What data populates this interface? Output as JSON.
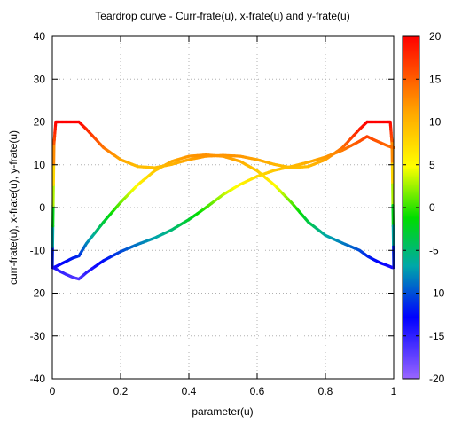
{
  "chart_data": {
    "type": "line",
    "title": "Teardrop curve - Curr-frate(u), x-frate(u) and y-frate(u)",
    "xlabel": "parameter(u)",
    "ylabel": "curr-frate(u), x-frate(u), y-frate(u)",
    "xlim": [
      0,
      1
    ],
    "ylim": [
      -40,
      40
    ],
    "x_ticks": [
      "0",
      "0.2",
      "0.4",
      "0.6",
      "0.8",
      "1"
    ],
    "y_ticks": [
      "-40",
      "-30",
      "-20",
      "-10",
      "0",
      "10",
      "20",
      "30",
      "40"
    ],
    "grid": true,
    "colorbar": {
      "range": [
        -20,
        20
      ],
      "ticks": [
        "-20",
        "-15",
        "-10",
        "-5",
        "0",
        "5",
        "10",
        "15",
        "20"
      ],
      "palette": [
        "#9966ff",
        "#0000ff",
        "#00a8a8",
        "#00dd00",
        "#ffff00",
        "#ffa500",
        "#ff0000"
      ]
    },
    "series": [
      {
        "x": [
          0,
          0.005,
          0.01,
          0.02,
          0.04,
          0.06,
          0.078,
          0.1,
          0.15,
          0.2,
          0.25,
          0.3,
          0.35,
          0.4,
          0.45,
          0.5,
          0.55,
          0.6,
          0.65,
          0.7,
          0.75,
          0.8,
          0.85,
          0.9,
          0.922,
          0.94,
          0.96,
          0.98,
          0.99,
          0.995,
          1
        ],
        "y": [
          -14,
          15,
          20,
          20,
          20,
          20,
          20,
          18.3,
          14,
          11.2,
          9.6,
          9.3,
          10.1,
          11.2,
          12,
          12.2,
          12,
          11.2,
          10.1,
          9.3,
          9.6,
          11.2,
          14,
          18.3,
          20,
          20,
          20,
          20,
          20,
          15,
          -14
        ]
      },
      {
        "x": [
          0,
          0.005,
          0.01,
          0.02,
          0.04,
          0.06,
          0.078,
          0.1,
          0.15,
          0.2,
          0.25,
          0.3,
          0.35,
          0.4,
          0.45,
          0.5,
          0.55,
          0.6,
          0.65,
          0.7,
          0.75,
          0.8,
          0.85,
          0.9,
          0.922,
          0.94,
          0.96,
          0.98,
          0.99,
          0.995,
          1
        ],
        "y": [
          -14,
          -14.1,
          -14.3,
          -14.8,
          -15.6,
          -16.3,
          -16.7,
          -15.2,
          -12.4,
          -10.3,
          -8.6,
          -7.1,
          -5.2,
          -2.8,
          0,
          3,
          5.4,
          7.3,
          8.7,
          9.6,
          10.6,
          11.8,
          13.4,
          15.5,
          16.6,
          15.9,
          15.2,
          14.5,
          14.2,
          14.1,
          14
        ]
      },
      {
        "x": [
          0,
          0.005,
          0.01,
          0.02,
          0.04,
          0.06,
          0.078,
          0.1,
          0.15,
          0.2,
          0.25,
          0.3,
          0.35,
          0.4,
          0.45,
          0.5,
          0.55,
          0.6,
          0.65,
          0.7,
          0.75,
          0.8,
          0.85,
          0.9,
          0.922,
          0.94,
          0.96,
          0.98,
          0.99,
          0.995,
          1
        ],
        "y": [
          -14,
          -14,
          -13.8,
          -13.4,
          -12.6,
          -11.8,
          -11.3,
          -8.4,
          -3.4,
          1.2,
          5.3,
          8.6,
          10.8,
          12,
          12.3,
          12,
          10.8,
          8.6,
          5.3,
          1.2,
          -3.4,
          -6.5,
          -8.3,
          -10,
          -11.3,
          -12.1,
          -12.9,
          -13.5,
          -13.8,
          -14,
          -14
        ]
      }
    ]
  }
}
